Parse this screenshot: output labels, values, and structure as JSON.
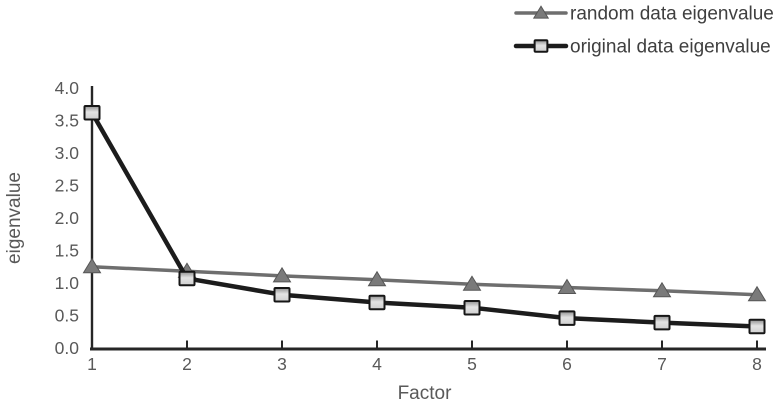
{
  "figure": {
    "background": "#ffffff",
    "text_color": "#595959",
    "legend_text_color": "#3f3f3f",
    "axis_color": "#262626"
  },
  "chart_data": {
    "type": "line",
    "title": "",
    "xlabel": "Factor",
    "ylabel": "eigenvalue",
    "x": [
      1,
      2,
      3,
      4,
      5,
      6,
      7,
      8
    ],
    "xtick_labels": [
      "1",
      "2",
      "3",
      "4",
      "5",
      "6",
      "7",
      "8"
    ],
    "ytick_labels": [
      "0.0",
      "0.5",
      "1.0",
      "1.5",
      "2.0",
      "2.5",
      "3.0",
      "3.5",
      "4.0"
    ],
    "xlim": [
      1,
      8
    ],
    "ylim": [
      0,
      4
    ],
    "grid": false,
    "legend_position": "top-right",
    "series": [
      {
        "name": "random data eigenvalue",
        "marker": "triangle",
        "line_color": "#6e6e6e",
        "marker_fill": "#7a7a7a",
        "marker_edge": "#565656",
        "line_width": 3.5,
        "values": [
          1.25,
          1.18,
          1.11,
          1.05,
          0.98,
          0.93,
          0.88,
          0.82
        ]
      },
      {
        "name": "original  data eigenvalue",
        "marker": "square",
        "line_color": "#1c1c1c",
        "marker_fill": "#d6d6d6",
        "marker_edge": "#161616",
        "line_width": 4.5,
        "values": [
          3.62,
          1.07,
          0.82,
          0.7,
          0.62,
          0.46,
          0.39,
          0.33
        ]
      }
    ]
  }
}
